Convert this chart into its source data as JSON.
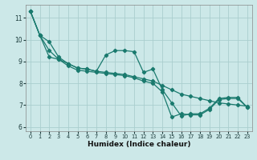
{
  "xlabel": "Humidex (Indice chaleur)",
  "ylabel": "",
  "background_color": "#cce8e8",
  "grid_color": "#aacece",
  "line_color": "#1a7a6e",
  "xlim": [
    -0.5,
    23.5
  ],
  "ylim": [
    5.8,
    11.6
  ],
  "yticks": [
    6,
    7,
    8,
    9,
    10,
    11
  ],
  "xticks": [
    0,
    1,
    2,
    3,
    4,
    5,
    6,
    7,
    8,
    9,
    10,
    11,
    12,
    13,
    14,
    15,
    16,
    17,
    18,
    19,
    20,
    21,
    22,
    23
  ],
  "line_upper": {
    "x": [
      0,
      1,
      2,
      3,
      4,
      5,
      6,
      7,
      8,
      9,
      10,
      11,
      12,
      13,
      14,
      15,
      16,
      17,
      18,
      19,
      20,
      21,
      22,
      23
    ],
    "y": [
      11.3,
      10.2,
      9.9,
      9.2,
      8.9,
      8.7,
      8.65,
      8.55,
      9.3,
      9.5,
      9.5,
      9.45,
      8.5,
      8.65,
      7.7,
      7.1,
      6.5,
      6.6,
      6.6,
      6.85,
      7.3,
      7.35,
      7.35,
      6.9
    ]
  },
  "line_mid": {
    "x": [
      0,
      1,
      2,
      3,
      4,
      5,
      6,
      7,
      8,
      9,
      10,
      11,
      12,
      13,
      14,
      15,
      16,
      17,
      18,
      19,
      20,
      21,
      22,
      23
    ],
    "y": [
      11.3,
      10.2,
      9.5,
      9.1,
      8.9,
      8.7,
      8.65,
      8.55,
      8.5,
      8.45,
      8.4,
      8.3,
      8.2,
      8.1,
      7.9,
      7.7,
      7.5,
      7.4,
      7.3,
      7.2,
      7.1,
      7.05,
      7.0,
      6.95
    ]
  },
  "line_lower": {
    "x": [
      0,
      1,
      2,
      3,
      4,
      5,
      6,
      7,
      8,
      9,
      10,
      11,
      12,
      13,
      14,
      15,
      16,
      17,
      18,
      19,
      20,
      21,
      22,
      23
    ],
    "y": [
      11.3,
      10.2,
      9.2,
      9.1,
      8.8,
      8.6,
      8.55,
      8.5,
      8.45,
      8.4,
      8.35,
      8.25,
      8.1,
      8.0,
      7.6,
      6.45,
      6.6,
      6.55,
      6.55,
      6.8,
      7.25,
      7.3,
      7.3,
      6.9
    ]
  }
}
